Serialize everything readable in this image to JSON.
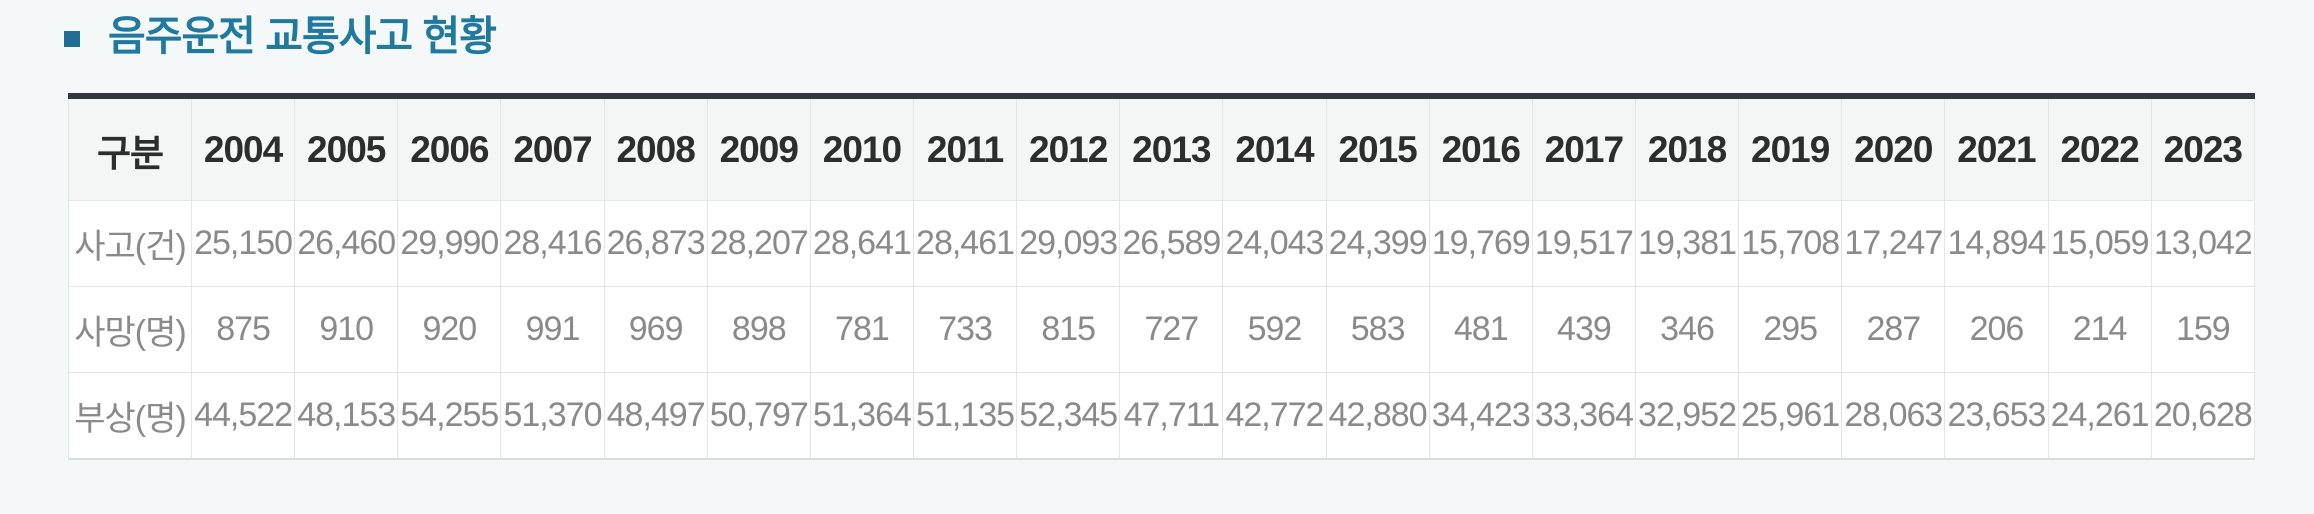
{
  "section": {
    "title": "음주운전 교통사고 현황",
    "title_color": "#20799e",
    "bullet_color": "#1d6e92"
  },
  "table": {
    "header": [
      "구분",
      "2004",
      "2005",
      "2006",
      "2007",
      "2008",
      "2009",
      "2010",
      "2011",
      "2012",
      "2013",
      "2014",
      "2015",
      "2016",
      "2017",
      "2018",
      "2019",
      "2020",
      "2021",
      "2022",
      "2023"
    ],
    "rows": [
      {
        "label": "사고(건)",
        "values": [
          "25,150",
          "26,460",
          "29,990",
          "28,416",
          "26,873",
          "28,207",
          "28,641",
          "28,461",
          "29,093",
          "26,589",
          "24,043",
          "24,399",
          "19,769",
          "19,517",
          "19,381",
          "15,708",
          "17,247",
          "14,894",
          "15,059",
          "13,042"
        ]
      },
      {
        "label": "사망(명)",
        "values": [
          "875",
          "910",
          "920",
          "991",
          "969",
          "898",
          "781",
          "733",
          "815",
          "727",
          "592",
          "583",
          "481",
          "439",
          "346",
          "295",
          "287",
          "206",
          "214",
          "159"
        ]
      },
      {
        "label": "부상(명)",
        "values": [
          "44,522",
          "48,153",
          "54,255",
          "51,370",
          "48,497",
          "50,797",
          "51,364",
          "51,135",
          "52,345",
          "47,711",
          "42,772",
          "42,880",
          "34,423",
          "33,364",
          "32,952",
          "25,961",
          "28,063",
          "23,653",
          "24,261",
          "20,628"
        ]
      }
    ],
    "colors": {
      "top_border": "#31373d",
      "header_bg": "#f4f5f5",
      "header_text": "#2d2d2d",
      "cell_text": "#8a8a8a",
      "grid": "#e2e4e6"
    }
  }
}
